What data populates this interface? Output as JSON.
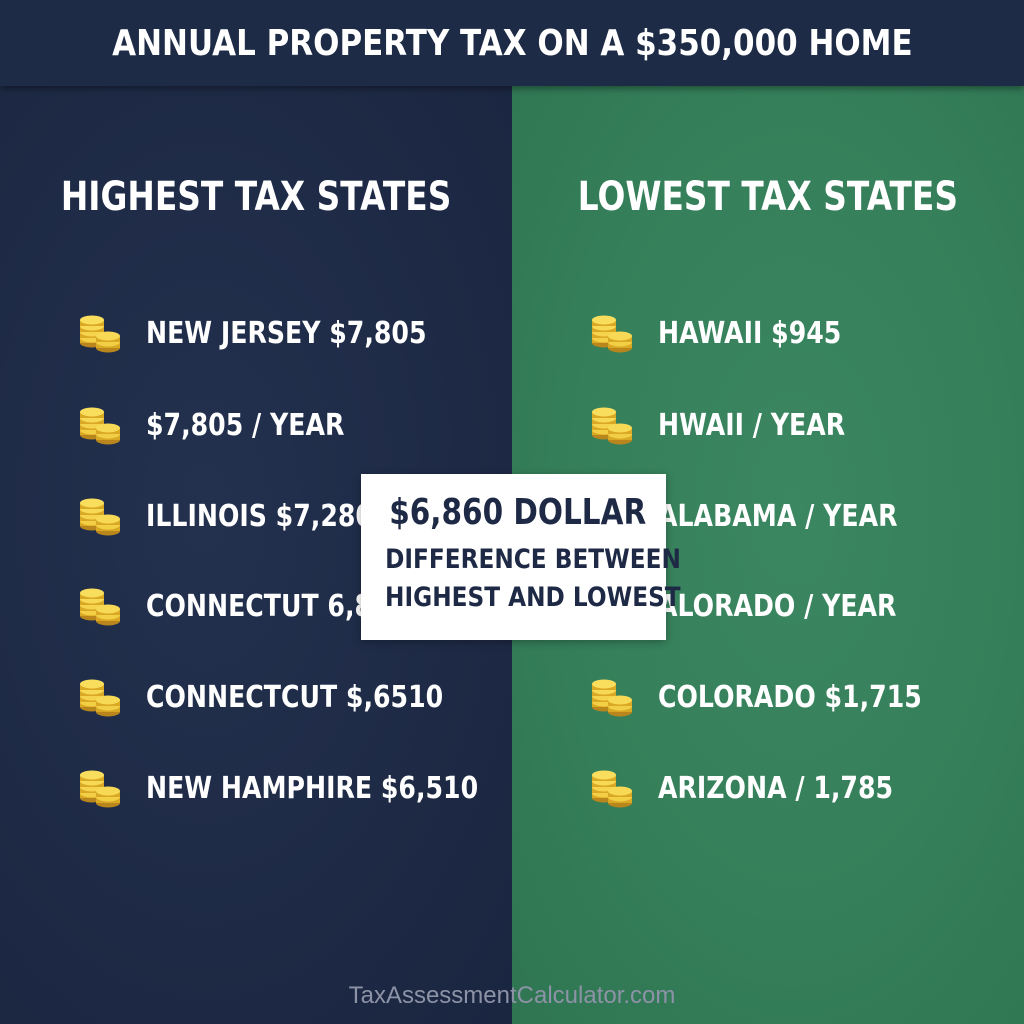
{
  "title": "ANNUAL PROPERTY TAX ON A $350,000 HOME",
  "colors": {
    "left_panel": "#1f2c48",
    "right_panel": "#357f5a",
    "title_bar": "#1d2b46",
    "coin": "#e4b62a",
    "text": "#ffffff"
  },
  "icon": "coin-stack-icon",
  "highest": {
    "heading": "HIGHEST TAX STATES",
    "rows": [
      {
        "label": "NEW JERSEY  $7,805"
      },
      {
        "label": "$7,805 / YEAR"
      },
      {
        "label": "ILLINOIS $7,280 / YEAR"
      },
      {
        "label": "CONNECTUT 6,860"
      },
      {
        "label": "CONNECTCUT     $,6510"
      },
      {
        "label": "NEW HAMPHIRE  $6,510"
      }
    ]
  },
  "lowest": {
    "heading": "LOWEST TAX STATES",
    "rows": [
      {
        "label": "HAWAII  $945"
      },
      {
        "label": "HWAII / YEAR"
      },
      {
        "label": "ALABAMA / YEAR"
      },
      {
        "label": "ALORADO / YEAR"
      },
      {
        "label": "COLORADO $1,715"
      },
      {
        "label": "ARIZONA / 1,785"
      }
    ]
  },
  "callout": {
    "amount": "$6,860 DOLLAR",
    "line1": "DIFFERENCE BETWEEN",
    "line2": "HIGHEST AND LOWEST"
  },
  "footer": "TaxAssessmentCalculator.com"
}
